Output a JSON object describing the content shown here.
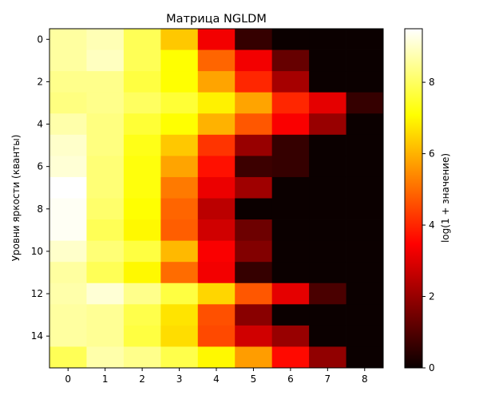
{
  "chart_data": {
    "type": "heatmap",
    "title": "Матрица NGLDM",
    "xlabel": "",
    "ylabel": "Уровни яркости (кванты)",
    "colorbar_label": "log(1 + значение)",
    "colormap": "hot",
    "vmin": 0,
    "vmax": 9.5,
    "x_categories": [
      "0",
      "1",
      "2",
      "3",
      "4",
      "5",
      "6",
      "7",
      "8"
    ],
    "x_tick_labels": [
      "0",
      "1",
      "2",
      "3",
      "4",
      "5",
      "6",
      "7",
      "8"
    ],
    "y_categories": [
      "0",
      "1",
      "2",
      "3",
      "4",
      "5",
      "6",
      "7",
      "8",
      "9",
      "10",
      "11",
      "12",
      "13",
      "14",
      "15"
    ],
    "y_tick_labels": [
      "0",
      "2",
      "4",
      "6",
      "8",
      "10",
      "12",
      "14"
    ],
    "colorbar_ticks": [
      "0",
      "2",
      "4",
      "6",
      "8"
    ],
    "values": [
      [
        8.6,
        8.8,
        7.9,
        6.3,
        3.3,
        0.6,
        0.0,
        0.0,
        0.0
      ],
      [
        8.6,
        8.9,
        7.9,
        7.1,
        4.9,
        3.3,
        1.3,
        0.0,
        0.0
      ],
      [
        8.4,
        8.4,
        7.7,
        7.1,
        5.8,
        4.0,
        2.2,
        0.0,
        0.0
      ],
      [
        8.3,
        8.4,
        8.0,
        7.6,
        6.9,
        5.8,
        4.0,
        3.1,
        0.6
      ],
      [
        8.7,
        8.3,
        7.6,
        7.1,
        6.0,
        4.7,
        3.4,
        2.0,
        0.0
      ],
      [
        9.0,
        8.3,
        7.3,
        6.3,
        4.2,
        2.0,
        0.6,
        0.0,
        0.0
      ],
      [
        9.1,
        8.2,
        7.2,
        5.8,
        3.7,
        0.7,
        0.6,
        0.0,
        0.0
      ],
      [
        9.5,
        8.2,
        7.2,
        5.2,
        3.2,
        2.1,
        0.0,
        0.0,
        0.0
      ],
      [
        9.4,
        8.1,
        7.1,
        4.9,
        2.5,
        0.0,
        0.0,
        0.0,
        0.0
      ],
      [
        9.4,
        7.9,
        7.0,
        4.8,
        2.8,
        1.4,
        0.0,
        0.0,
        0.0
      ],
      [
        9.0,
        8.2,
        7.7,
        6.1,
        3.4,
        1.7,
        0.0,
        0.0,
        0.0
      ],
      [
        8.6,
        7.9,
        7.0,
        5.0,
        3.3,
        0.6,
        0.0,
        0.0,
        0.0
      ],
      [
        8.7,
        9.1,
        8.4,
        7.7,
        6.5,
        4.7,
        3.1,
        0.9,
        0.0
      ],
      [
        8.6,
        8.5,
        7.8,
        6.7,
        4.6,
        1.8,
        0.0,
        0.0,
        0.0
      ],
      [
        8.6,
        8.5,
        7.7,
        6.6,
        4.5,
        2.8,
        2.0,
        0.0,
        0.0
      ],
      [
        7.9,
        8.7,
        8.4,
        7.8,
        7.0,
        5.7,
        3.6,
        1.9,
        0.0
      ]
    ]
  }
}
